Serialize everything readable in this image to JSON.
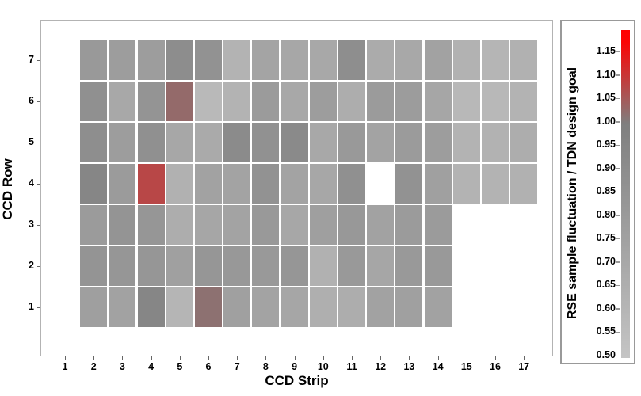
{
  "figure": {
    "xlabel": "CCD Strip",
    "ylabel": "CCD Row",
    "x_ticks": [
      "1",
      "2",
      "3",
      "4",
      "5",
      "6",
      "7",
      "8",
      "9",
      "10",
      "11",
      "12",
      "13",
      "14",
      "15",
      "16",
      "17"
    ],
    "y_ticks": [
      "1",
      "2",
      "3",
      "4",
      "5",
      "6",
      "7"
    ]
  },
  "colorbar": {
    "title": "RSE sample fluctuation / TDN design goal",
    "tick_labels": [
      "1.15",
      "1.10",
      "1.05",
      "1.00",
      "0.95",
      "0.90",
      "0.85",
      "0.80",
      "0.75",
      "0.70",
      "0.65",
      "0.60",
      "0.55",
      "0.50"
    ],
    "vmin": 0.5,
    "vmax": 1.2,
    "tick_step": 0.05,
    "color_at_min": "#c4c4c4",
    "color_at_100": "#7f7f7f",
    "color_at_max": "#fb0000"
  },
  "chart_data": {
    "type": "heatmap",
    "title": "",
    "xlabel": "CCD Strip",
    "ylabel": "CCD Row",
    "x_range": [
      1,
      17
    ],
    "y_range": [
      1,
      7
    ],
    "strips": [
      2,
      3,
      4,
      5,
      6,
      7,
      8,
      9,
      10,
      11,
      12,
      13,
      14,
      15,
      16,
      17
    ],
    "legend_title": "RSE sample fluctuation / TDN design goal",
    "grid_on": true,
    "notes": "null = no CCD at that position; rows 1-3 span strips 2-14; row 4 spans strips 2-17 except strip 12; rows 5-7 span strips 2-17",
    "rows": [
      {
        "row": 7,
        "values": [
          0.81,
          0.78,
          0.78,
          0.9,
          0.86,
          0.62,
          0.73,
          0.71,
          0.7,
          0.89,
          0.68,
          0.7,
          0.75,
          0.63,
          0.61,
          0.64
        ]
      },
      {
        "row": 6,
        "values": [
          0.88,
          0.7,
          0.85,
          1.03,
          0.58,
          0.62,
          0.8,
          0.7,
          0.78,
          0.67,
          0.8,
          0.79,
          0.72,
          0.59,
          0.59,
          0.62
        ]
      },
      {
        "row": 5,
        "values": [
          0.89,
          0.78,
          0.88,
          0.71,
          0.69,
          0.91,
          0.87,
          0.92,
          0.7,
          0.81,
          0.74,
          0.8,
          0.78,
          0.62,
          0.63,
          0.67
        ]
      },
      {
        "row": 4,
        "values": [
          0.95,
          0.8,
          1.08,
          0.64,
          0.75,
          0.74,
          0.86,
          0.74,
          0.71,
          0.88,
          null,
          0.86,
          0.76,
          0.62,
          0.62,
          0.64
        ]
      },
      {
        "row": 3,
        "values": [
          0.8,
          0.85,
          0.83,
          0.67,
          0.72,
          0.74,
          0.81,
          0.71,
          0.77,
          0.82,
          0.75,
          0.8,
          0.8,
          null,
          null,
          null
        ]
      },
      {
        "row": 2,
        "values": [
          0.85,
          0.83,
          0.83,
          0.76,
          0.83,
          0.82,
          0.81,
          0.83,
          0.64,
          0.81,
          0.72,
          0.81,
          0.81,
          null,
          null,
          null
        ]
      },
      {
        "row": 1,
        "values": [
          0.77,
          0.75,
          0.95,
          0.61,
          1.02,
          0.76,
          0.74,
          0.72,
          0.65,
          0.67,
          0.75,
          0.76,
          0.75,
          null,
          null,
          null
        ]
      }
    ]
  }
}
